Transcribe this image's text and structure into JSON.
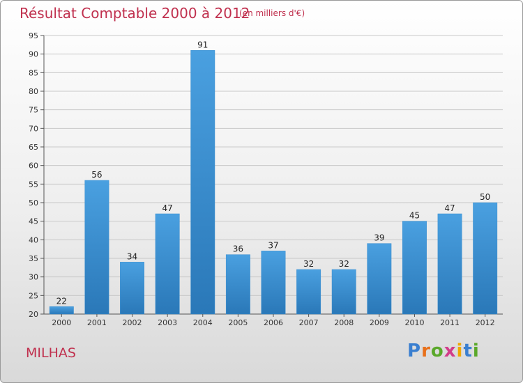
{
  "header": {
    "title": "Résultat Comptable 2000 à 2012",
    "subtitle": "(en milliers d'€)"
  },
  "footer": {
    "place": "MILHAS",
    "logo_letters": [
      "P",
      "r",
      "o",
      "x",
      "i",
      "t",
      "i"
    ],
    "logo_colors": [
      "#3a7fd0",
      "#e8701a",
      "#5aa82a",
      "#d23c8a",
      "#f0a800",
      "#3a7fd0",
      "#5aa82a"
    ]
  },
  "chart_data": {
    "type": "bar",
    "title": "Résultat Comptable 2000 à 2012",
    "subtitle": "(en milliers d'€)",
    "categories": [
      "2000",
      "2001",
      "2002",
      "2003",
      "2004",
      "2005",
      "2006",
      "2007",
      "2008",
      "2009",
      "2010",
      "2011",
      "2012"
    ],
    "values": [
      22,
      56,
      34,
      47,
      91,
      36,
      37,
      32,
      32,
      39,
      45,
      47,
      50
    ],
    "ylim": [
      20,
      95
    ],
    "yticks": [
      20,
      25,
      30,
      35,
      40,
      45,
      50,
      55,
      60,
      65,
      70,
      75,
      80,
      85,
      90,
      95
    ],
    "grid": true,
    "bar_color": "#4aa0e0",
    "bar_color_dark": "#2a78b8"
  }
}
